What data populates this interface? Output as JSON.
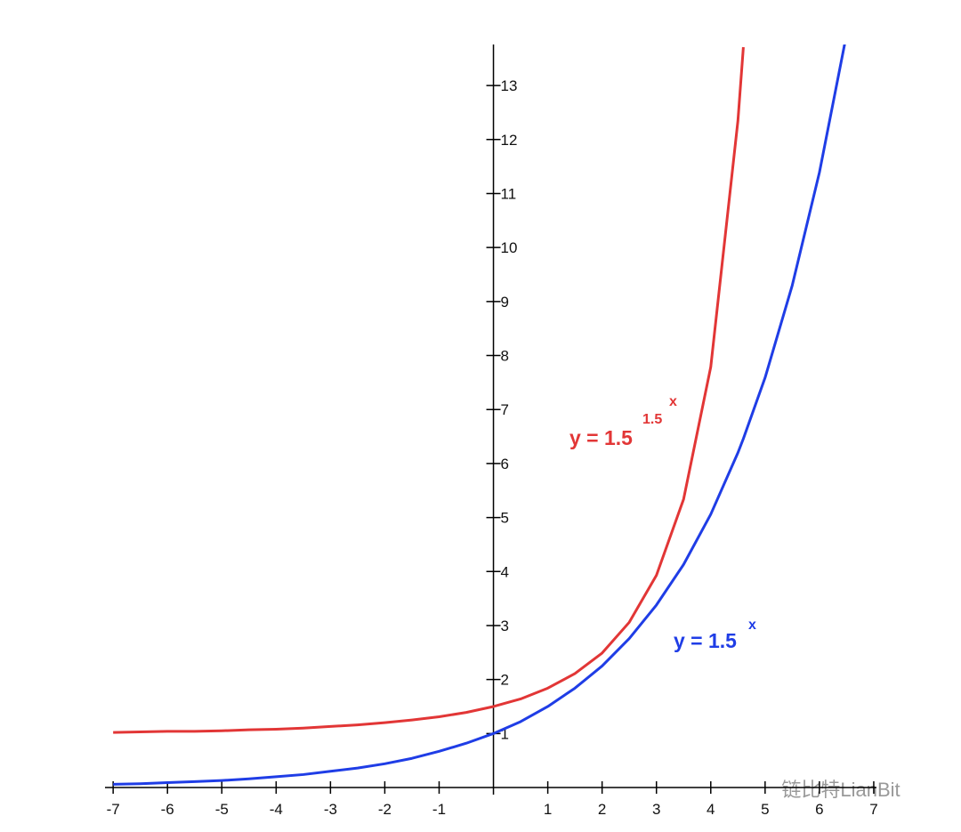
{
  "chart_data": {
    "type": "line",
    "x": [
      -7,
      -6.5,
      -6,
      -5.5,
      -5,
      -4.5,
      -4,
      -3.5,
      -3,
      -2.5,
      -2,
      -1.5,
      -1,
      -0.5,
      0,
      0.5,
      1,
      1.5,
      2,
      2.5,
      3,
      3.5,
      4,
      4.5,
      4.6,
      5,
      5.5,
      6,
      6.5
    ],
    "series": [
      {
        "name": "y = 1.5^(1.5^x)",
        "color": "#e23636",
        "values": [
          1.02,
          1.03,
          1.04,
          1.04,
          1.05,
          1.07,
          1.08,
          1.1,
          1.13,
          1.16,
          1.2,
          1.25,
          1.31,
          1.39,
          1.5,
          1.64,
          1.84,
          2.11,
          2.49,
          3.06,
          3.93,
          5.34,
          7.79,
          12.35,
          13.71,
          null,
          null,
          null,
          null
        ]
      },
      {
        "name": "y = 1.5^x",
        "color": "#1f3de6",
        "values": [
          0.06,
          0.07,
          0.09,
          0.11,
          0.13,
          0.16,
          0.2,
          0.24,
          0.3,
          0.36,
          0.44,
          0.54,
          0.67,
          0.82,
          1,
          1.22,
          1.5,
          1.84,
          2.25,
          2.76,
          3.38,
          4.13,
          5.06,
          6.2,
          6.46,
          7.59,
          9.3,
          11.39,
          13.95
        ]
      }
    ],
    "annotations": [
      {
        "text": "y = 1.5",
        "sup": "1.5",
        "sup2": "x"
      },
      {
        "text": "y = 1.5",
        "sup": "x"
      }
    ],
    "xlim": [
      -7.15,
      7.05
    ],
    "ylim": [
      0,
      13.76
    ],
    "xticks": [
      -7,
      -6,
      -5,
      -4,
      -3,
      -2,
      -1,
      1,
      2,
      3,
      4,
      5,
      6,
      7
    ],
    "yticks": [
      1,
      2,
      3,
      4,
      5,
      6,
      7,
      8,
      9,
      10,
      11,
      12,
      13
    ],
    "watermark": "链比特LianBit"
  }
}
